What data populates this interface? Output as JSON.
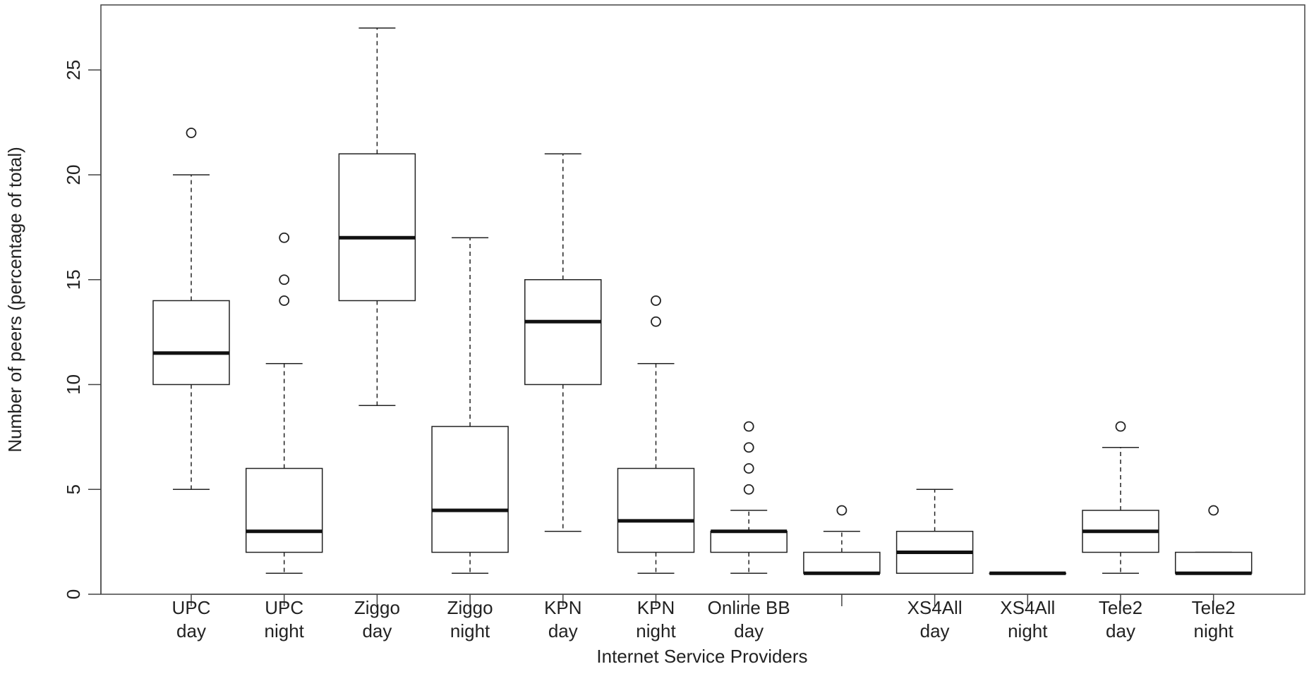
{
  "chart_data": {
    "type": "boxplot",
    "title": "",
    "xlabel": "Internet Service Providers",
    "ylabel": "Number of peers (percentage of total)",
    "ylim": [
      0,
      27.5
    ],
    "yticks": [
      0,
      5,
      10,
      15,
      20,
      25
    ],
    "grid": false,
    "categories": [
      [
        "UPC",
        "day"
      ],
      [
        "UPC",
        "night"
      ],
      [
        "Ziggo",
        "day"
      ],
      [
        "Ziggo",
        "night"
      ],
      [
        "KPN",
        "day"
      ],
      [
        "KPN",
        "night"
      ],
      [
        "Online BB",
        "day"
      ],
      [
        "",
        ""
      ],
      [
        "XS4All",
        "day"
      ],
      [
        "XS4All",
        "night"
      ],
      [
        "Tele2",
        "day"
      ],
      [
        "Tele2",
        "night"
      ]
    ],
    "boxes": [
      {
        "min": 5,
        "q1": 10,
        "median": 11.5,
        "q3": 14,
        "max": 20,
        "outliers": [
          22
        ]
      },
      {
        "min": 1,
        "q1": 2,
        "median": 3,
        "q3": 6,
        "max": 11,
        "outliers": [
          14,
          15,
          17
        ]
      },
      {
        "min": 9,
        "q1": 14,
        "median": 17,
        "q3": 21,
        "max": 27,
        "outliers": []
      },
      {
        "min": 1,
        "q1": 2,
        "median": 4,
        "q3": 8,
        "max": 17,
        "outliers": []
      },
      {
        "min": 3,
        "q1": 10,
        "median": 13,
        "q3": 15,
        "max": 21,
        "outliers": []
      },
      {
        "min": 1,
        "q1": 2,
        "median": 3.5,
        "q3": 6,
        "max": 11,
        "outliers": [
          13,
          14
        ]
      },
      {
        "min": 1,
        "q1": 2,
        "median": 3,
        "q3": 3,
        "max": 4,
        "outliers": [
          5,
          6,
          7,
          8
        ]
      },
      {
        "min": 1,
        "q1": 1,
        "median": 1,
        "q3": 2,
        "max": 3,
        "outliers": [
          4
        ]
      },
      {
        "min": 1,
        "q1": 1,
        "median": 2,
        "q3": 3,
        "max": 5,
        "outliers": []
      },
      {
        "min": 1,
        "q1": 1,
        "median": 1,
        "q3": 1,
        "max": 1,
        "outliers": []
      },
      {
        "min": 1,
        "q1": 2,
        "median": 3,
        "q3": 4,
        "max": 7,
        "outliers": [
          8
        ]
      },
      {
        "min": 1,
        "q1": 1,
        "median": 1,
        "q3": 2,
        "max": 2,
        "outliers": [
          4
        ]
      }
    ]
  }
}
